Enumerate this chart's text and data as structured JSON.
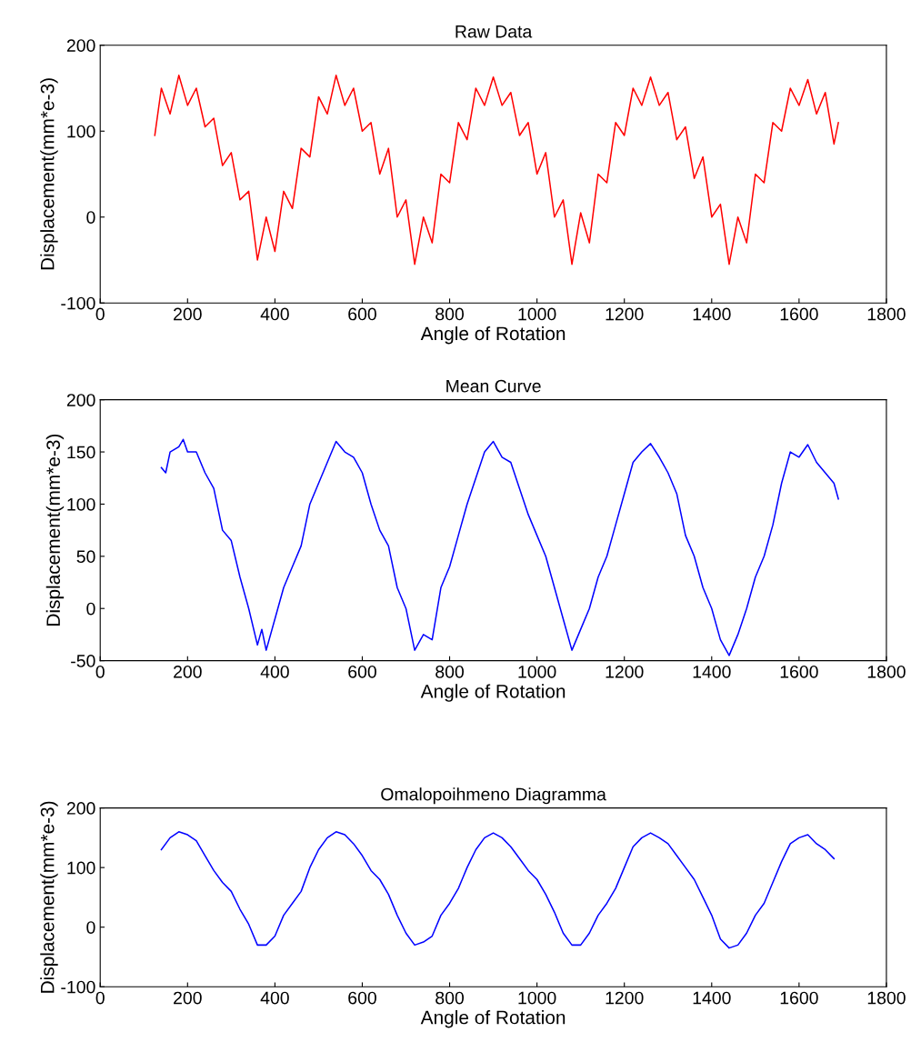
{
  "chart_data": [
    {
      "type": "line",
      "title": "Raw Data",
      "xlabel": "Angle of Rotation",
      "ylabel": "Displacement(mm*e-3)",
      "xlim": [
        0,
        1800
      ],
      "xticks": [
        0,
        200,
        400,
        600,
        800,
        1000,
        1200,
        1400,
        1600,
        1800
      ],
      "ylim": [
        -100,
        200
      ],
      "yticks": [
        -100,
        0,
        100,
        200
      ],
      "series": [
        {
          "color": "#ff0000",
          "x": [
            125,
            140,
            160,
            180,
            200,
            220,
            240,
            260,
            280,
            300,
            320,
            340,
            360,
            380,
            400,
            420,
            440,
            460,
            480,
            500,
            520,
            540,
            560,
            580,
            600,
            620,
            640,
            660,
            680,
            700,
            720,
            740,
            760,
            780,
            800,
            820,
            840,
            860,
            880,
            900,
            920,
            940,
            960,
            980,
            1000,
            1020,
            1040,
            1060,
            1080,
            1100,
            1120,
            1140,
            1160,
            1180,
            1200,
            1220,
            1240,
            1260,
            1280,
            1300,
            1320,
            1340,
            1360,
            1380,
            1400,
            1420,
            1440,
            1460,
            1480,
            1500,
            1520,
            1540,
            1560,
            1580,
            1600,
            1620,
            1640,
            1660,
            1680,
            1690
          ],
          "values": [
            95,
            150,
            120,
            165,
            130,
            150,
            105,
            115,
            60,
            75,
            20,
            30,
            -50,
            0,
            -40,
            30,
            10,
            80,
            70,
            140,
            120,
            165,
            130,
            150,
            100,
            110,
            50,
            80,
            0,
            20,
            -55,
            0,
            -30,
            50,
            40,
            110,
            90,
            150,
            130,
            163,
            130,
            145,
            95,
            110,
            50,
            75,
            0,
            20,
            -55,
            5,
            -30,
            50,
            40,
            110,
            95,
            150,
            130,
            163,
            130,
            145,
            90,
            105,
            45,
            70,
            0,
            15,
            -55,
            0,
            -30,
            50,
            40,
            110,
            100,
            150,
            130,
            160,
            120,
            145,
            85,
            110
          ]
        }
      ]
    },
    {
      "type": "line",
      "title": "Mean Curve",
      "xlabel": "Angle of Rotation",
      "ylabel": "Displacement(mm*e-3)",
      "xlim": [
        0,
        1800
      ],
      "xticks": [
        0,
        200,
        400,
        600,
        800,
        1000,
        1200,
        1400,
        1600,
        1800
      ],
      "ylim": [
        -50,
        200
      ],
      "yticks": [
        -50,
        0,
        50,
        100,
        150,
        200
      ],
      "series": [
        {
          "color": "#0000ff",
          "x": [
            140,
            150,
            160,
            180,
            190,
            200,
            220,
            240,
            260,
            280,
            300,
            320,
            340,
            360,
            370,
            380,
            400,
            420,
            440,
            460,
            480,
            500,
            520,
            540,
            560,
            580,
            600,
            620,
            640,
            660,
            680,
            700,
            720,
            740,
            760,
            780,
            800,
            820,
            840,
            860,
            880,
            900,
            920,
            940,
            960,
            980,
            1000,
            1020,
            1040,
            1060,
            1080,
            1100,
            1120,
            1140,
            1160,
            1180,
            1200,
            1220,
            1240,
            1260,
            1280,
            1300,
            1320,
            1340,
            1360,
            1380,
            1400,
            1420,
            1440,
            1460,
            1480,
            1500,
            1520,
            1540,
            1560,
            1580,
            1600,
            1620,
            1640,
            1660,
            1680,
            1690
          ],
          "values": [
            135,
            130,
            150,
            155,
            162,
            150,
            150,
            130,
            115,
            75,
            65,
            30,
            0,
            -35,
            -20,
            -40,
            -10,
            20,
            40,
            60,
            100,
            120,
            140,
            160,
            150,
            145,
            130,
            100,
            75,
            60,
            20,
            0,
            -40,
            -25,
            -30,
            20,
            40,
            70,
            100,
            125,
            150,
            160,
            145,
            140,
            115,
            90,
            70,
            50,
            20,
            -10,
            -40,
            -20,
            0,
            30,
            50,
            80,
            110,
            140,
            150,
            158,
            145,
            130,
            110,
            70,
            50,
            20,
            0,
            -30,
            -45,
            -25,
            0,
            30,
            50,
            80,
            120,
            150,
            145,
            157,
            140,
            130,
            120,
            105
          ]
        }
      ]
    },
    {
      "type": "line",
      "title": "Omalopoihmeno Diagramma",
      "xlabel": "Angle of Rotation",
      "ylabel": "Displacement(mm*e-3)",
      "xlim": [
        0,
        1800
      ],
      "xticks": [
        0,
        200,
        400,
        600,
        800,
        1000,
        1200,
        1400,
        1600,
        1800
      ],
      "ylim": [
        -100,
        200
      ],
      "yticks": [
        -100,
        0,
        100,
        200
      ],
      "series": [
        {
          "color": "#0000ff",
          "x": [
            140,
            160,
            180,
            200,
            220,
            240,
            260,
            280,
            300,
            320,
            340,
            360,
            380,
            400,
            420,
            440,
            460,
            480,
            500,
            520,
            540,
            560,
            580,
            600,
            620,
            640,
            660,
            680,
            700,
            720,
            740,
            760,
            780,
            800,
            820,
            840,
            860,
            880,
            900,
            920,
            940,
            960,
            980,
            1000,
            1020,
            1040,
            1060,
            1080,
            1100,
            1120,
            1140,
            1160,
            1180,
            1200,
            1220,
            1240,
            1260,
            1280,
            1300,
            1320,
            1340,
            1360,
            1380,
            1400,
            1420,
            1440,
            1460,
            1480,
            1500,
            1520,
            1540,
            1560,
            1580,
            1600,
            1620,
            1640,
            1660,
            1680
          ],
          "values": [
            130,
            150,
            160,
            155,
            145,
            120,
            95,
            75,
            60,
            30,
            5,
            -30,
            -30,
            -15,
            20,
            40,
            60,
            100,
            130,
            150,
            160,
            155,
            140,
            120,
            95,
            80,
            55,
            20,
            -10,
            -30,
            -25,
            -15,
            20,
            40,
            65,
            100,
            130,
            150,
            158,
            150,
            135,
            115,
            95,
            80,
            55,
            25,
            -10,
            -30,
            -30,
            -10,
            20,
            40,
            65,
            100,
            135,
            150,
            158,
            150,
            140,
            120,
            100,
            80,
            50,
            20,
            -20,
            -35,
            -30,
            -10,
            20,
            40,
            75,
            110,
            140,
            150,
            155,
            140,
            130,
            115
          ]
        }
      ]
    }
  ]
}
